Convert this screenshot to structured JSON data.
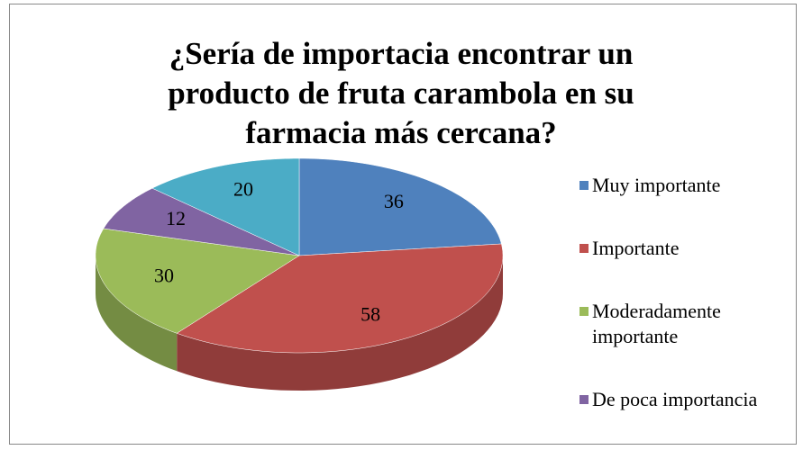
{
  "chart_data": {
    "type": "pie",
    "title": "¿Sería de importacia encontrar un producto de fruta carambola en su farmacia más cercana?",
    "categories": [
      "Muy importante",
      "Importante",
      "Moderadamente importante",
      "De poca importancia",
      null
    ],
    "values": [
      36,
      58,
      30,
      12,
      20
    ],
    "colors": [
      "#4f81bd",
      "#c0504d",
      "#9bbb59",
      "#8064a2",
      "#4bacc6"
    ],
    "legend": "right"
  }
}
